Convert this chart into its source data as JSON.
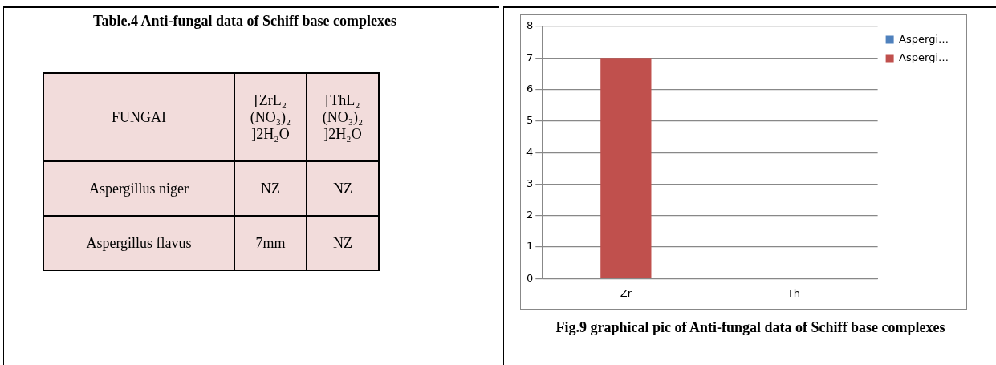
{
  "chart_data": [
    {
      "type": "other",
      "title": "Table.4 Anti-fungal data of Schiff base complexes",
      "annotations": [
        "FUNGAI",
        "[ZrL₂ (NO₃)₂ ]2H₂O",
        "[ThL₂ (NO₃)₂ ]2H₂O",
        "Aspergillus niger",
        "NZ",
        "NZ",
        "Aspergillus flavus",
        "7mm",
        "NZ"
      ]
    },
    {
      "type": "bar",
      "title": "Fig.9 graphical pic of Anti-fungal data of Schiff base complexes",
      "categories": [
        "Zr",
        "Th"
      ],
      "series": [
        {
          "name": "Aspergi…",
          "color": "#4f81bd",
          "values": [
            null,
            null
          ]
        },
        {
          "name": "Aspergi…",
          "color": "#c0504d",
          "values": [
            7,
            null
          ]
        }
      ],
      "ylim": [
        0,
        8
      ],
      "yticks": [
        0,
        1,
        2,
        3,
        4,
        5,
        6,
        7,
        8
      ],
      "grid": "y",
      "legend": "right"
    }
  ]
}
